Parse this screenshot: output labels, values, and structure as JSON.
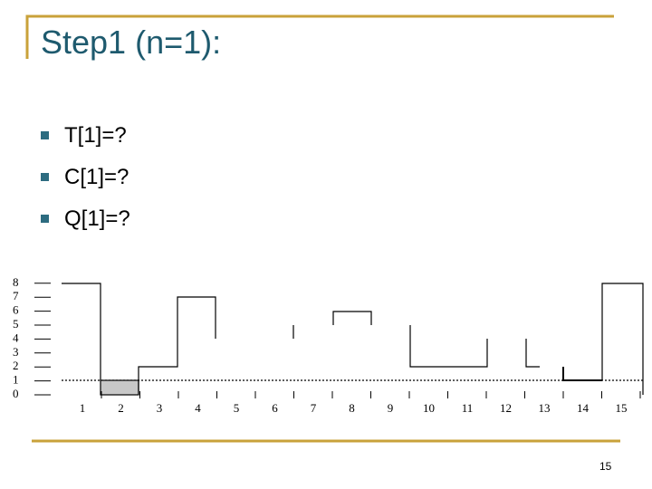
{
  "header": {
    "title": "Step1 (n=1):"
  },
  "bullets": [
    "T[1]=?",
    "C[1]=?",
    "Q[1]=?"
  ],
  "figure": {
    "y_labels": [
      "0",
      "1",
      "2",
      "3",
      "4",
      "5",
      "6",
      "7",
      "8"
    ],
    "x_labels": [
      "1",
      "2",
      "3",
      "4",
      "5",
      "6",
      "7",
      "8",
      "9",
      "10",
      "11",
      "12",
      "13",
      "14",
      "15"
    ]
  },
  "footer": {
    "page_number": "15"
  }
}
